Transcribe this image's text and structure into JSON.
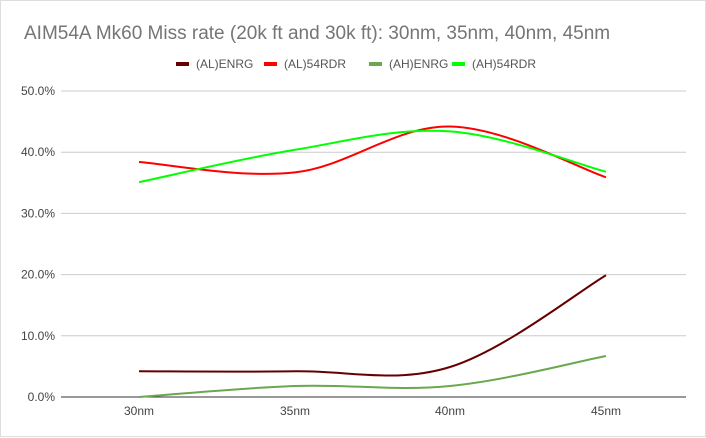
{
  "chart_data": {
    "type": "line",
    "title": "AIM54A Mk60 Miss rate (20k ft and 30k ft): 30nm, 35nm,  40nm, 45nm",
    "categories": [
      "30nm",
      "35nm",
      "40nm",
      "45nm"
    ],
    "yticks": [
      "0.0%",
      "10.0%",
      "20.0%",
      "30.0%",
      "40.0%",
      "50.0%"
    ],
    "ylim": [
      0,
      50
    ],
    "grid": true,
    "smooth": true,
    "legend": "top",
    "series": [
      {
        "name": "(AL)ENRG",
        "color": "#660000",
        "values": [
          4.2,
          4.2,
          4.9,
          19.9
        ]
      },
      {
        "name": "(AL)54RDR",
        "color": "#ff0000",
        "values": [
          38.4,
          36.7,
          44.2,
          35.9
        ]
      },
      {
        "name": "(AH)ENRG",
        "color": "#6aa84f",
        "values": [
          0.0,
          1.8,
          1.8,
          6.7
        ]
      },
      {
        "name": "(AH)54RDR",
        "color": "#00ff00",
        "values": [
          35.1,
          40.4,
          43.4,
          36.8
        ]
      }
    ]
  }
}
